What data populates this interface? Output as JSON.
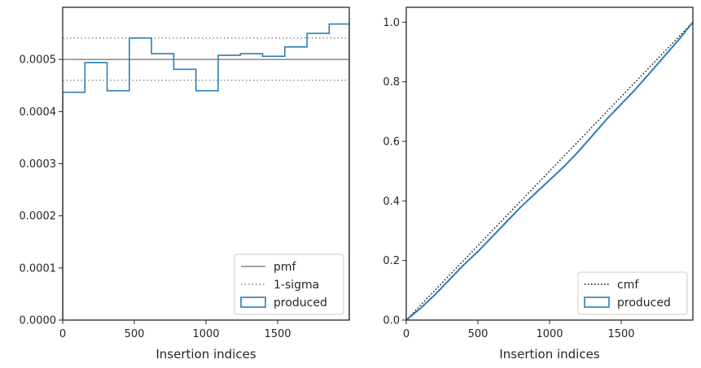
{
  "colors": {
    "produced": "#2a7fb5",
    "pmf": "#808080",
    "sigma": "#808080",
    "cmf": "#000000",
    "frame": "#262626"
  },
  "chart_data": [
    {
      "type": "line",
      "xlabel": "Insertion indices",
      "ylabel": "",
      "xlim": [
        0,
        2000
      ],
      "ylim": [
        0,
        0.0006
      ],
      "grid": false,
      "legend_position": "lower-right",
      "x_ticks": [
        {
          "v": 0,
          "label": "0"
        },
        {
          "v": 500,
          "label": "500"
        },
        {
          "v": 1000,
          "label": "1000"
        },
        {
          "v": 1500,
          "label": "1500"
        }
      ],
      "y_ticks": [
        {
          "v": 0,
          "label": "0.0000"
        },
        {
          "v": 0.0001,
          "label": "0.0001"
        },
        {
          "v": 0.0002,
          "label": "0.0002"
        },
        {
          "v": 0.0003,
          "label": "0.0003"
        },
        {
          "v": 0.0004,
          "label": "0.0004"
        },
        {
          "v": 0.0005,
          "label": "0.0005"
        }
      ],
      "pmf": 0.0005,
      "sigma_band": [
        0.00046,
        0.000541
      ],
      "produced_bin_edges": [
        0,
        155,
        310,
        465,
        620,
        775,
        930,
        1085,
        1240,
        1395,
        1550,
        1705,
        1860,
        2000
      ],
      "produced_values": [
        0.000437,
        0.000494,
        0.00044,
        0.000541,
        0.000511,
        0.000481,
        0.00044,
        0.000508,
        0.000511,
        0.000506,
        0.000524,
        0.00055,
        0.000568
      ],
      "legend": [
        {
          "key": "pmf",
          "label": "pmf"
        },
        {
          "key": "sigma",
          "label": "1-sigma"
        },
        {
          "key": "produced",
          "label": "produced"
        }
      ]
    },
    {
      "type": "line",
      "xlabel": "Insertion indices",
      "ylabel": "",
      "xlim": [
        0,
        2000
      ],
      "ylim": [
        0,
        1.05
      ],
      "grid": false,
      "legend_position": "lower-right",
      "x_ticks": [
        {
          "v": 0,
          "label": "0"
        },
        {
          "v": 500,
          "label": "500"
        },
        {
          "v": 1000,
          "label": "1000"
        },
        {
          "v": 1500,
          "label": "1500"
        }
      ],
      "y_ticks": [
        {
          "v": 0,
          "label": "0.0"
        },
        {
          "v": 0.2,
          "label": "0.2"
        },
        {
          "v": 0.4,
          "label": "0.4"
        },
        {
          "v": 0.6,
          "label": "0.6"
        },
        {
          "v": 0.8,
          "label": "0.8"
        },
        {
          "v": 1.0,
          "label": "1.0"
        }
      ],
      "cmf": {
        "x": [
          0,
          2000
        ],
        "y": [
          0,
          1.0
        ]
      },
      "produced": {
        "x": [
          0,
          100,
          200,
          300,
          400,
          500,
          600,
          700,
          800,
          900,
          1000,
          1100,
          1200,
          1300,
          1400,
          1500,
          1600,
          1700,
          1800,
          1900,
          2000
        ],
        "y": [
          0,
          0.04,
          0.085,
          0.135,
          0.185,
          0.23,
          0.28,
          0.33,
          0.38,
          0.425,
          0.47,
          0.515,
          0.565,
          0.62,
          0.675,
          0.725,
          0.775,
          0.83,
          0.885,
          0.94,
          1.0
        ]
      },
      "legend": [
        {
          "key": "cmf",
          "label": "cmf"
        },
        {
          "key": "produced",
          "label": "produced"
        }
      ]
    }
  ]
}
